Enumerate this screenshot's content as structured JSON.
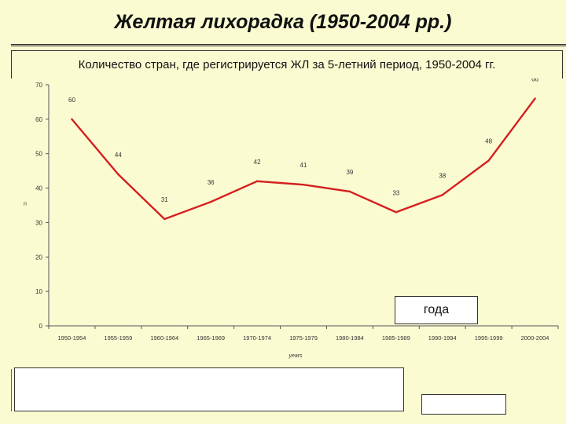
{
  "slide": {
    "title": "Желтая лихорадка (1950-2004 рр.)",
    "subtitle": "Количество стран, где регистрируется ЖЛ за 5-летний период, 1950-2004 гг."
  },
  "overlay_label": "года",
  "chart_data": {
    "type": "line",
    "title": "",
    "xlabel": "years",
    "ylabel": "n",
    "ylim": [
      0,
      70
    ],
    "yticks": [
      0,
      10,
      20,
      30,
      40,
      50,
      60,
      70
    ],
    "categories": [
      "1950-1954",
      "1955-1959",
      "1960-1964",
      "1965-1969",
      "1970-1974",
      "1975-1979",
      "1980-1984",
      "1985-1989",
      "1990-1994",
      "1995-1999",
      "2000-2004"
    ],
    "series": [
      {
        "values": [
          60,
          44,
          31,
          36,
          42,
          41,
          39,
          33,
          38,
          48,
          66
        ]
      }
    ],
    "grid": false,
    "colors": {
      "line": "#d42020",
      "axis": "#555555",
      "text": "#333333"
    }
  }
}
